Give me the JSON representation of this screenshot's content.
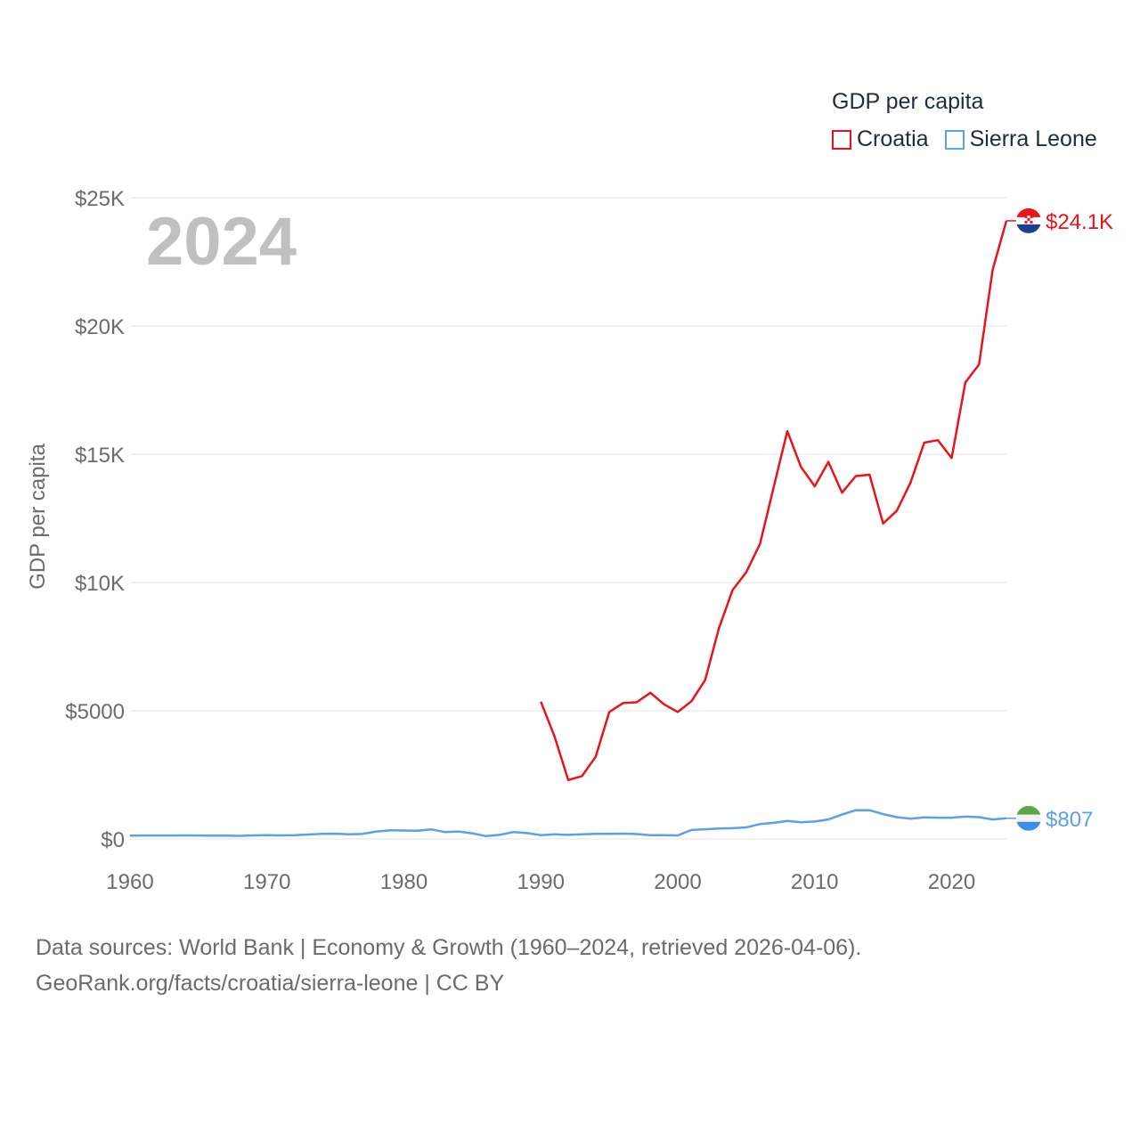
{
  "legend": {
    "title": "GDP per capita",
    "items": [
      {
        "label": "Croatia",
        "color": "#e8141b"
      },
      {
        "label": "Sierra Leone",
        "color": "#5aa1e6"
      }
    ]
  },
  "year_label": "2024",
  "footer": {
    "line1": "Data sources: World Bank | Economy & Growth (1960–2024, retrieved 2026-04-06).",
    "line2": "GeoRank.org/facts/croatia/sierra-leone | CC BY"
  },
  "chart_data": {
    "type": "line",
    "title": "GDP per capita",
    "xlabel": "",
    "ylabel": "GDP per capita",
    "xlim": [
      1960,
      2024
    ],
    "ylim": [
      0,
      25000
    ],
    "grid": true,
    "legend_position": "top-right",
    "x_ticks": [
      1960,
      1970,
      1980,
      1990,
      2000,
      2010,
      2020
    ],
    "x_tick_labels": [
      "1960",
      "1970",
      "1980",
      "1990",
      "2000",
      "2010",
      "2020"
    ],
    "y_ticks": [
      0,
      5000,
      10000,
      15000,
      20000,
      25000
    ],
    "y_tick_labels": [
      "$0",
      "$5000",
      "$10K",
      "$15K",
      "$20K",
      "$25K"
    ],
    "series": [
      {
        "name": "Croatia",
        "color": "#e8141b",
        "end_label": "$24.1K",
        "x": [
          1990,
          1991,
          1992,
          1993,
          1994,
          1995,
          1996,
          1997,
          1998,
          1999,
          2000,
          2001,
          2002,
          2003,
          2004,
          2005,
          2006,
          2007,
          2008,
          2009,
          2010,
          2011,
          2012,
          2013,
          2014,
          2015,
          2016,
          2017,
          2018,
          2019,
          2020,
          2021,
          2022,
          2023,
          2024
        ],
        "values": [
          5350,
          4000,
          2300,
          2450,
          3200,
          4950,
          5300,
          5330,
          5700,
          5250,
          4950,
          5370,
          6200,
          8200,
          9700,
          10400,
          11500,
          13700,
          15900,
          14500,
          13750,
          14700,
          13500,
          14150,
          14200,
          12300,
          12800,
          13900,
          15450,
          15550,
          14850,
          17800,
          18500,
          22200,
          24100
        ]
      },
      {
        "name": "Sierra Leone",
        "color": "#5aa1e6",
        "end_label": "$807",
        "x": [
          1960,
          1961,
          1962,
          1963,
          1964,
          1965,
          1966,
          1967,
          1968,
          1969,
          1970,
          1971,
          1972,
          1973,
          1974,
          1975,
          1976,
          1977,
          1978,
          1979,
          1980,
          1981,
          1982,
          1983,
          1984,
          1985,
          1986,
          1987,
          1988,
          1989,
          1990,
          1991,
          1992,
          1993,
          1994,
          1995,
          1996,
          1997,
          1998,
          1999,
          2000,
          2001,
          2002,
          2003,
          2004,
          2005,
          2006,
          2007,
          2008,
          2009,
          2010,
          2011,
          2012,
          2013,
          2014,
          2015,
          2016,
          2017,
          2018,
          2019,
          2020,
          2021,
          2022,
          2023,
          2024
        ],
        "values": [
          130,
          135,
          135,
          137,
          140,
          137,
          133,
          128,
          120,
          140,
          145,
          140,
          150,
          175,
          200,
          205,
          180,
          200,
          290,
          340,
          330,
          320,
          370,
          270,
          290,
          220,
          110,
          160,
          270,
          230,
          150,
          180,
          160,
          180,
          200,
          200,
          210,
          190,
          150,
          150,
          140,
          350,
          380,
          410,
          420,
          450,
          580,
          630,
          700,
          650,
          680,
          760,
          950,
          1120,
          1120,
          970,
          850,
          790,
          840,
          830,
          830,
          870,
          850,
          760,
          807
        ]
      }
    ]
  }
}
